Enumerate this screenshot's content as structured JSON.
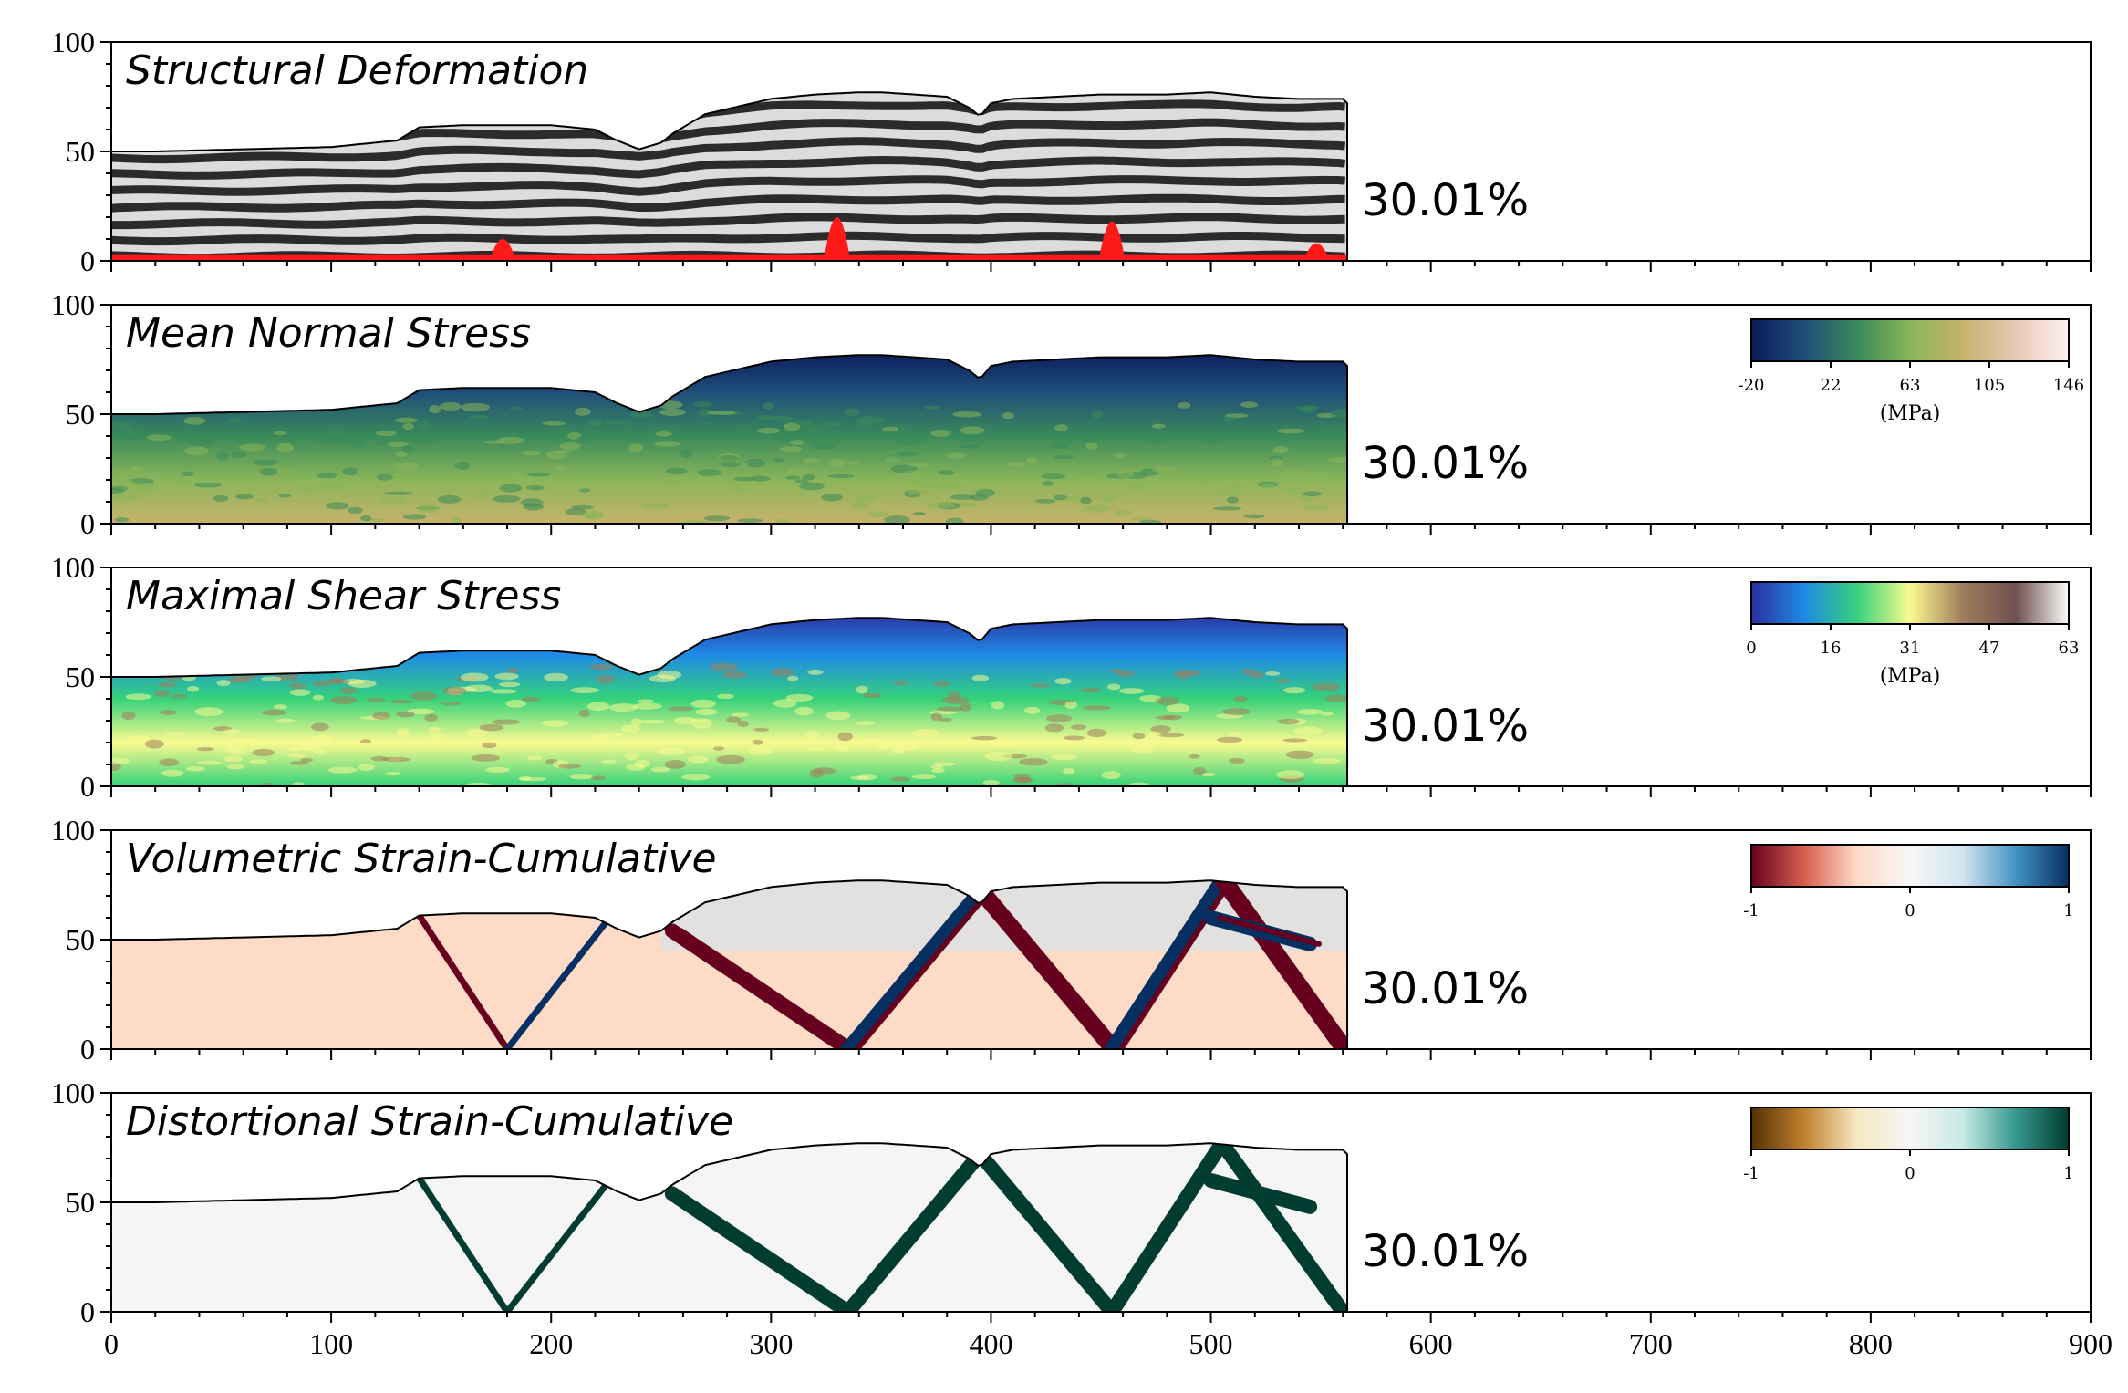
{
  "chart_data": {
    "type": "heatmap",
    "x_axis": {
      "range": [
        0,
        900
      ],
      "major_ticks": [
        0,
        100,
        200,
        300,
        400,
        500,
        600,
        700,
        800,
        900
      ],
      "minor_step": 20,
      "label": ""
    },
    "y_axis": {
      "range": [
        0,
        100
      ],
      "major_ticks": [
        0,
        50,
        100
      ],
      "minor_step": 10,
      "label": ""
    },
    "grid": false,
    "model_extent_x": [
      0,
      562
    ],
    "surface_profile": {
      "x": [
        0,
        20,
        60,
        100,
        130,
        140,
        160,
        200,
        220,
        230,
        240,
        250,
        255,
        270,
        300,
        320,
        340,
        350,
        380,
        390,
        395,
        400,
        410,
        450,
        480,
        500,
        520,
        540,
        560,
        562
      ],
      "y": [
        50,
        50,
        51,
        52,
        55,
        61,
        62,
        62,
        60,
        55,
        51,
        54,
        58,
        67,
        74,
        76,
        77,
        77,
        75,
        70,
        66,
        72,
        74,
        76,
        76,
        77,
        75,
        74,
        74,
        72
      ]
    },
    "panels": [
      {
        "id": "structural_deformation",
        "title": "Structural Deformation",
        "annotation": "30.01%",
        "field": "layering",
        "colors": {
          "dark_layer": "#2b2b2b",
          "light_layer": "#dcdcdc",
          "basal_layer": "#ff1a1a"
        },
        "colorbar": null
      },
      {
        "id": "mean_normal_stress",
        "title": "Mean Normal Stress",
        "annotation": "30.01%",
        "field": "depth_gradient",
        "colorbar": {
          "ticks": [
            "-20",
            "22",
            "63",
            "105",
            "146"
          ],
          "label": "(MPa)",
          "colormap": [
            "#0b1a5a",
            "#1f4e7a",
            "#3a8a5a",
            "#8ab55a",
            "#c6b36b",
            "#e8c8b8",
            "#fdf2f0"
          ]
        }
      },
      {
        "id": "maximal_shear_stress",
        "title": "Maximal Shear Stress",
        "annotation": "30.01%",
        "field": "depth_gradient",
        "colorbar": {
          "ticks": [
            "0",
            "16",
            "31",
            "47",
            "63"
          ],
          "label": "(MPa)",
          "colormap": [
            "#2b2f9e",
            "#1f8ae6",
            "#35d27a",
            "#fafa90",
            "#a07d5b",
            "#6e5050",
            "#fcfcfc"
          ]
        }
      },
      {
        "id": "volumetric_strain_cumulative",
        "title": "Volumetric Strain-Cumulative",
        "annotation": "30.01%",
        "field": "shear_bands_diverging",
        "colorbar": {
          "ticks": [
            "-1",
            "0",
            "1"
          ],
          "label": "",
          "colormap": [
            "#67001f",
            "#d6604d",
            "#fddbc7",
            "#f7f7f7",
            "#d1e5f0",
            "#4393c3",
            "#053061"
          ]
        }
      },
      {
        "id": "distortional_strain_cumulative",
        "title": "Distortional Strain-Cumulative",
        "annotation": "30.01%",
        "field": "shear_bands_positive",
        "colorbar": {
          "ticks": [
            "-1",
            "0",
            "1"
          ],
          "label": "",
          "colormap": [
            "#543005",
            "#bf812d",
            "#f6e8c3",
            "#f5f5f5",
            "#c7eae5",
            "#35978f",
            "#003c30"
          ]
        }
      }
    ]
  }
}
